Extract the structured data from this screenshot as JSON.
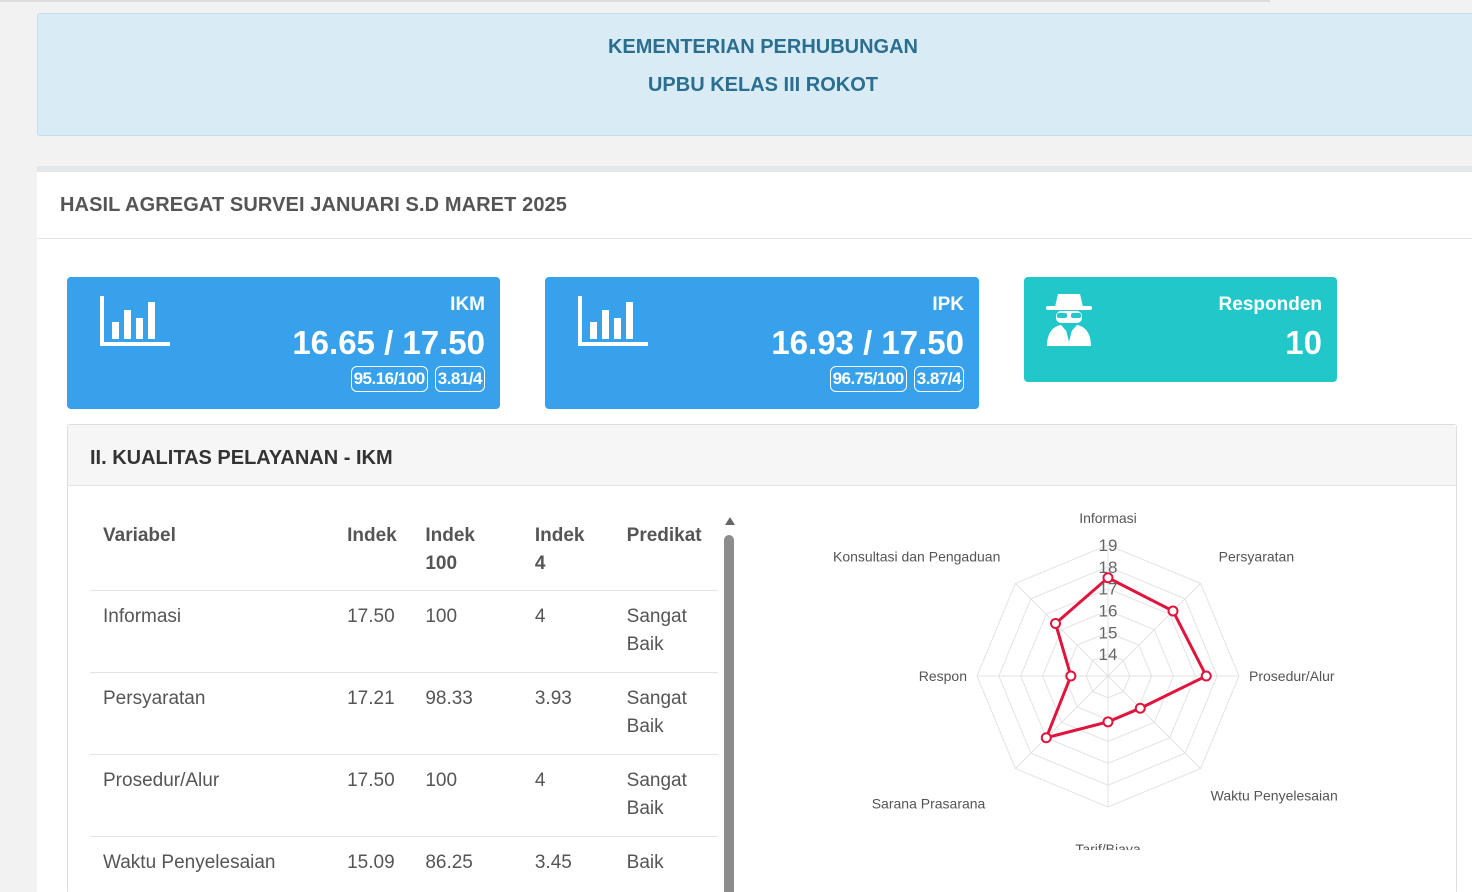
{
  "header": {
    "line1": "KEMENTERIAN PERHUBUNGAN",
    "line2": "UPBU KELAS III ROKOT"
  },
  "panel": {
    "title": "HASIL AGREGAT SURVEI JANUARI S.D MARET 2025"
  },
  "cards": [
    {
      "label": "IKM",
      "value": "16.65 / 17.50",
      "badge1": "95.16/100",
      "badge2": "3.81/4",
      "icon": "bar-chart-icon",
      "color": "#37a1eb"
    },
    {
      "label": "IPK",
      "value": "16.93 / 17.50",
      "badge1": "96.75/100",
      "badge2": "3.87/4",
      "icon": "bar-chart-icon",
      "color": "#37a1eb"
    },
    {
      "label": "Responden",
      "value": "10",
      "icon": "user-secret-icon",
      "color": "#22c7c9"
    }
  ],
  "section": {
    "title": "II. KUALITAS PELAYANAN - IKM",
    "columns": [
      "Variabel",
      "Indek",
      "Indek 100",
      "Indek 4",
      "Predikat"
    ],
    "rows": [
      [
        "Informasi",
        "17.50",
        "100",
        "4",
        "Sangat Baik"
      ],
      [
        "Persyaratan",
        "17.21",
        "98.33",
        "3.93",
        "Sangat Baik"
      ],
      [
        "Prosedur/Alur",
        "17.50",
        "100",
        "4",
        "Sangat Baik"
      ],
      [
        "Waktu Penyelesaian",
        "15.09",
        "86.25",
        "3.45",
        "Baik"
      ]
    ]
  },
  "chart_data": {
    "type": "radar",
    "axes": [
      "Informasi",
      "Persyaratan",
      "Prosedur/Alur",
      "Waktu Penyelesaian",
      "Tarif/Biaya",
      "Sarana Prasarana",
      "Respon",
      "Konsultasi dan Pengaduan"
    ],
    "values": [
      17.5,
      17.21,
      17.5,
      15.09,
      15.1,
      17.0,
      14.7,
      16.4
    ],
    "scale_min": 13,
    "scale_max": 19,
    "tick_labels": [
      "14",
      "15",
      "16",
      "17",
      "18",
      "19"
    ],
    "color": "#e0143c"
  }
}
